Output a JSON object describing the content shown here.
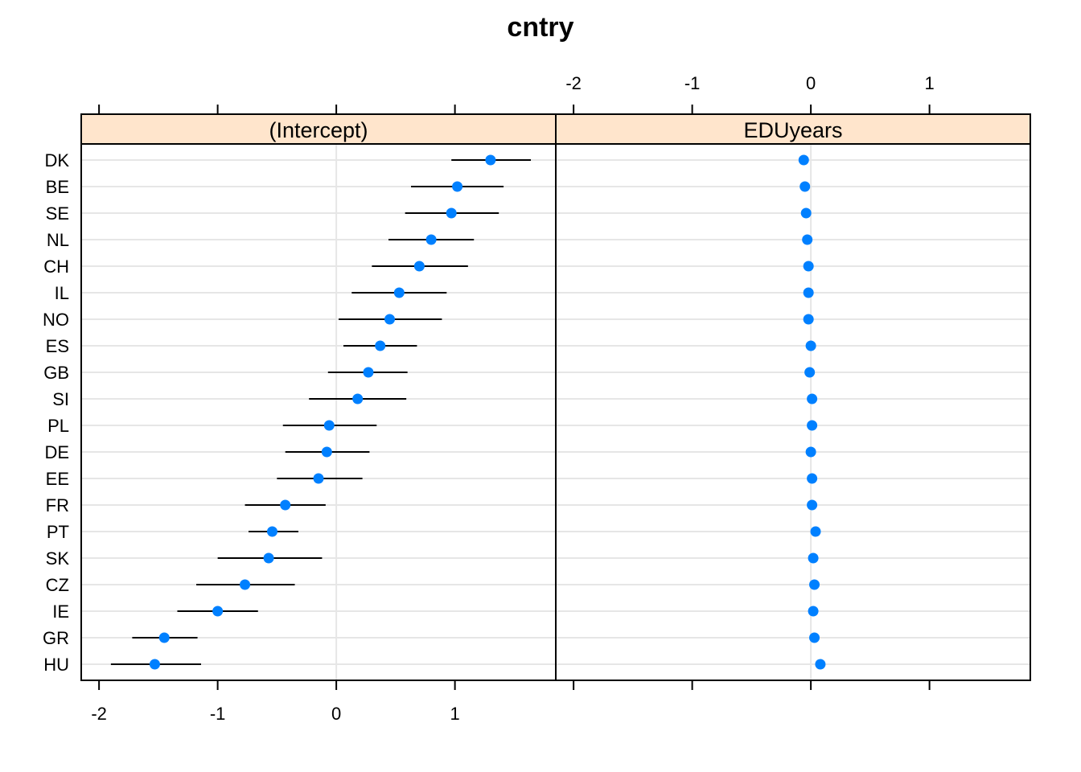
{
  "chart_data": {
    "type": "dotplot",
    "title": "cntry",
    "xlim": [
      -2.15,
      1.85
    ],
    "ticks": [
      -2,
      -1,
      0,
      1
    ],
    "tick_labels": [
      "-2",
      "-1",
      "0",
      "1"
    ],
    "categories": [
      "DK",
      "BE",
      "SE",
      "NL",
      "CH",
      "IL",
      "NO",
      "ES",
      "GB",
      "SI",
      "PL",
      "DE",
      "EE",
      "FR",
      "PT",
      "SK",
      "CZ",
      "IE",
      "GR",
      "HU"
    ],
    "panels": [
      {
        "name": "(Intercept)",
        "values": [
          1.3,
          1.02,
          0.97,
          0.8,
          0.7,
          0.53,
          0.45,
          0.37,
          0.27,
          0.18,
          -0.06,
          -0.08,
          -0.15,
          -0.43,
          -0.54,
          -0.57,
          -0.77,
          -1.0,
          -1.45,
          -1.53
        ],
        "lower": [
          0.97,
          0.63,
          0.58,
          0.44,
          0.3,
          0.13,
          0.02,
          0.06,
          -0.07,
          -0.23,
          -0.45,
          -0.43,
          -0.5,
          -0.77,
          -0.74,
          -1.0,
          -1.18,
          -1.34,
          -1.72,
          -1.9
        ],
        "upper": [
          1.64,
          1.41,
          1.37,
          1.16,
          1.11,
          0.93,
          0.89,
          0.68,
          0.6,
          0.59,
          0.34,
          0.28,
          0.22,
          -0.09,
          -0.32,
          -0.12,
          -0.35,
          -0.66,
          -1.17,
          -1.14
        ]
      },
      {
        "name": "EDUyears",
        "values": [
          -0.06,
          -0.05,
          -0.04,
          -0.03,
          -0.02,
          -0.02,
          -0.02,
          0.0,
          -0.01,
          0.01,
          0.01,
          0.0,
          0.01,
          0.01,
          0.04,
          0.02,
          0.03,
          0.02,
          0.03,
          0.08
        ]
      }
    ],
    "grid": true,
    "colors": {
      "point": "#0080FF",
      "interval": "#000000",
      "strip_bg": "#FFE5CC",
      "grid": "#E6E6E6",
      "reference_line": "#E6E6E6"
    }
  }
}
